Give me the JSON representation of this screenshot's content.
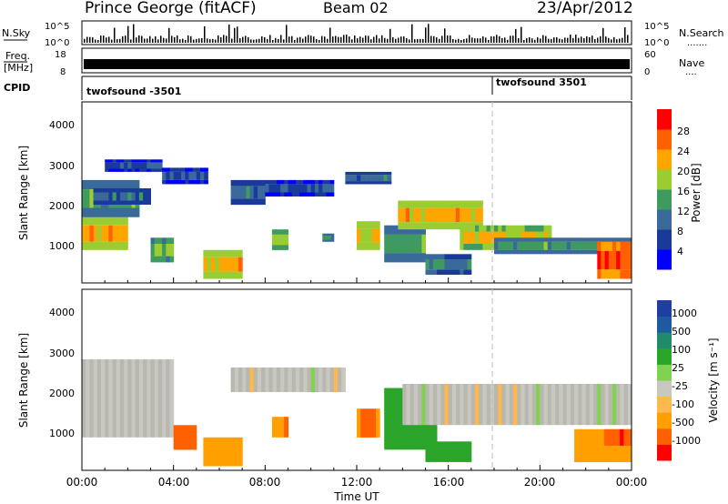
{
  "header": {
    "station": "Prince George (fitACF)",
    "beam": "Beam 02",
    "date": "23/Apr/2012"
  },
  "noise_panel": {
    "left_label": "N.Sky",
    "right_label": "N.Search",
    "right_legend_dots": ".......",
    "y_ticks_left": [
      "10^5",
      "10^0"
    ],
    "y_ticks_right": [
      "10^5",
      "10^0"
    ]
  },
  "freq_panel": {
    "left_label_1": "Freq.",
    "left_label_2": "[MHz]",
    "right_label": "Nave",
    "right_legend_dots": "....",
    "y_ticks_left": [
      "18",
      "8"
    ],
    "y_ticks_right": [
      "60",
      "0"
    ]
  },
  "cpid_panel": {
    "label": "CPID",
    "entries": [
      "twofsound -3501",
      "twofsound 3501"
    ]
  },
  "x_axis": {
    "label": "Time UT",
    "ticks": [
      "00:00",
      "04:00",
      "08:00",
      "12:00",
      "16:00",
      "20:00",
      "00:00"
    ]
  },
  "power_panel": {
    "ylabel": "Slant Range [km]",
    "y_ticks": [
      "1000",
      "2000",
      "3000",
      "4000"
    ],
    "colorbar_label": "Power [dB]",
    "colorbar_ticks": [
      "4",
      "8",
      "12",
      "16",
      "20",
      "24",
      "28"
    ],
    "colors": [
      "#0000ff",
      "#1a3a9a",
      "#3a6a9a",
      "#3f9a60",
      "#9acd32",
      "#ffa500",
      "#ff6000",
      "#ff0000"
    ]
  },
  "velocity_panel": {
    "ylabel": "Slant Range [km]",
    "y_ticks": [
      "1000",
      "2000",
      "3000",
      "4000"
    ],
    "colorbar_label": "Velocity [m s⁻¹]",
    "colorbar_ticks": [
      "-1000",
      "-500",
      "-100",
      "-25",
      "25",
      "100",
      "500",
      "1000"
    ],
    "colors": [
      "#ff0000",
      "#ff6000",
      "#ff9f00",
      "#ffb84d",
      "#c8c8c0",
      "#7fd34f",
      "#2aa52a",
      "#208a6a",
      "#1f5aa0",
      "#1f3fa0"
    ]
  },
  "chart_data": {
    "type": "heatmap",
    "title": "Prince George (fitACF)",
    "xlabel": "Time UT",
    "ylabel": "Slant Range [km]",
    "xlim": [
      "00:00",
      "24:00"
    ],
    "ylim": [
      200,
      4600
    ],
    "power_scale": [
      0,
      30
    ],
    "velocity_scale": [
      -1200,
      1200
    ],
    "power_bands": [
      {
        "t0": 0.0,
        "t1": 2.0,
        "r0": 1000,
        "r1": 1800,
        "p": 22
      },
      {
        "t0": 0.0,
        "t1": 2.5,
        "r0": 1800,
        "r1": 2700,
        "p": 14
      },
      {
        "t0": 0.5,
        "t1": 3.0,
        "r0": 2100,
        "r1": 2500,
        "p": 10
      },
      {
        "t0": 1.0,
        "t1": 3.5,
        "r0": 2900,
        "r1": 3200,
        "p": 8
      },
      {
        "t0": 3.0,
        "t1": 4.0,
        "r0": 700,
        "r1": 1300,
        "p": 16
      },
      {
        "t0": 3.5,
        "t1": 5.5,
        "r0": 2600,
        "r1": 3000,
        "p": 8
      },
      {
        "t0": 5.3,
        "t1": 7.0,
        "r0": 300,
        "r1": 1000,
        "p": 22
      },
      {
        "t0": 6.5,
        "t1": 8.0,
        "r0": 2100,
        "r1": 2700,
        "p": 10
      },
      {
        "t0": 8.3,
        "t1": 9.0,
        "r0": 1000,
        "r1": 1500,
        "p": 18
      },
      {
        "t0": 8.0,
        "t1": 11.0,
        "r0": 2300,
        "r1": 2700,
        "p": 8
      },
      {
        "t0": 10.5,
        "t1": 11.0,
        "r0": 1200,
        "r1": 1400,
        "p": 14
      },
      {
        "t0": 11.5,
        "t1": 13.5,
        "r0": 2600,
        "r1": 2900,
        "p": 10
      },
      {
        "t0": 12.0,
        "t1": 13.0,
        "r0": 1000,
        "r1": 1700,
        "p": 22
      },
      {
        "t0": 13.2,
        "t1": 15.0,
        "r0": 700,
        "r1": 1600,
        "p": 14
      },
      {
        "t0": 13.8,
        "t1": 17.5,
        "r0": 1500,
        "r1": 2200,
        "p": 22
      },
      {
        "t0": 15.0,
        "t1": 17.0,
        "r0": 400,
        "r1": 900,
        "p": 12
      },
      {
        "t0": 16.5,
        "t1": 20.5,
        "r0": 1000,
        "r1": 1600,
        "p": 20
      },
      {
        "t0": 18.0,
        "t1": 24.0,
        "r0": 900,
        "r1": 1300,
        "p": 14
      },
      {
        "t0": 22.5,
        "t1": 24.0,
        "r0": 300,
        "r1": 1200,
        "p": 28
      }
    ],
    "velocity_bands": [
      {
        "t0": 0.0,
        "t1": 4.0,
        "r0": 1000,
        "r1": 2900,
        "v": 0
      },
      {
        "t0": 4.0,
        "t1": 5.0,
        "r0": 700,
        "r1": 1300,
        "v": -600
      },
      {
        "t0": 5.3,
        "t1": 7.0,
        "r0": 300,
        "r1": 1000,
        "v": -300
      },
      {
        "t0": 6.5,
        "t1": 11.5,
        "r0": 2100,
        "r1": 2700,
        "v": 0
      },
      {
        "t0": 8.3,
        "t1": 9.0,
        "r0": 1000,
        "r1": 1500,
        "v": -500
      },
      {
        "t0": 12.0,
        "t1": 13.0,
        "r0": 1000,
        "r1": 1700,
        "v": -500
      },
      {
        "t0": 13.2,
        "t1": 15.5,
        "r0": 700,
        "r1": 2200,
        "v": 300
      },
      {
        "t0": 15.0,
        "t1": 17.0,
        "r0": 400,
        "r1": 900,
        "v": 150
      },
      {
        "t0": 14.0,
        "t1": 24.0,
        "r0": 1300,
        "r1": 2300,
        "v": 0
      },
      {
        "t0": 21.5,
        "t1": 24.0,
        "r0": 400,
        "r1": 1200,
        "v": -300
      },
      {
        "t0": 22.8,
        "t1": 24.0,
        "r0": 800,
        "r1": 1200,
        "v": -1000
      }
    ]
  }
}
